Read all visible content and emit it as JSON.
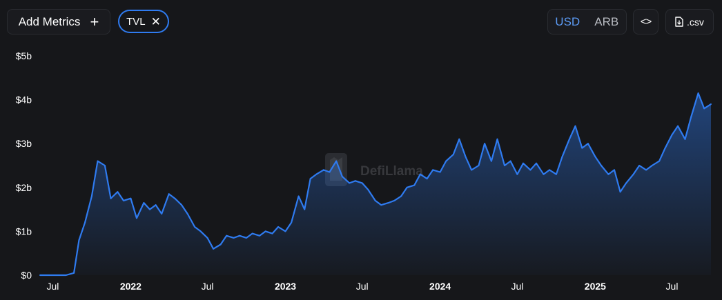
{
  "toolbar": {
    "add_metrics_label": "Add Metrics",
    "add_metrics_icon": "plus-icon",
    "metric_chip_label": "TVL",
    "metric_chip_icon": "close-icon",
    "currency_options": [
      "USD",
      "ARB"
    ],
    "currency_selected": "USD",
    "embed_icon": "code-icon",
    "csv_label": ".csv",
    "csv_icon": "file-download-icon"
  },
  "watermark": {
    "text": "DefiLlama",
    "icon": "llama-logo-icon"
  },
  "colors": {
    "background": "#16171a",
    "line": "#2f7bf0",
    "accent": "#5c9bf5"
  },
  "chart_data": {
    "type": "area",
    "title": "",
    "xlabel": "",
    "ylabel": "",
    "ylim": [
      0,
      5
    ],
    "y_unit": "billion USD",
    "y_tick_labels": [
      "$0",
      "$1b",
      "$2b",
      "$3b",
      "$4b",
      "$5b"
    ],
    "x_tick_labels": [
      {
        "label": "Jul",
        "date": "2021-07",
        "bold": false
      },
      {
        "label": "2022",
        "date": "2022-01",
        "bold": true
      },
      {
        "label": "Jul",
        "date": "2022-07",
        "bold": false
      },
      {
        "label": "2023",
        "date": "2023-01",
        "bold": true
      },
      {
        "label": "Jul",
        "date": "2023-07",
        "bold": false
      },
      {
        "label": "2024",
        "date": "2024-01",
        "bold": true
      },
      {
        "label": "Jul",
        "date": "2024-07",
        "bold": false
      },
      {
        "label": "2025",
        "date": "2025-01",
        "bold": true
      },
      {
        "label": "Jul",
        "date": "2025-07",
        "bold": false
      }
    ],
    "grid": false,
    "legend": "none",
    "series": [
      {
        "name": "TVL",
        "x": [
          "2021-06",
          "2021-07",
          "2021-08",
          "2021-08-20",
          "2021-09",
          "2021-09-15",
          "2021-10",
          "2021-10-15",
          "2021-11",
          "2021-11-15",
          "2021-12",
          "2021-12-15",
          "2022-01",
          "2022-01-15",
          "2022-02",
          "2022-02-15",
          "2022-03",
          "2022-03-15",
          "2022-04",
          "2022-04-15",
          "2022-05",
          "2022-05-15",
          "2022-06",
          "2022-06-15",
          "2022-07",
          "2022-07-15",
          "2022-08",
          "2022-08-15",
          "2022-09",
          "2022-09-15",
          "2022-10",
          "2022-10-15",
          "2022-11",
          "2022-11-15",
          "2022-12",
          "2022-12-15",
          "2023-01",
          "2023-01-15",
          "2023-02",
          "2023-02-15",
          "2023-03",
          "2023-03-15",
          "2023-04",
          "2023-04-15",
          "2023-05",
          "2023-05-15",
          "2023-06",
          "2023-06-15",
          "2023-07",
          "2023-07-15",
          "2023-08",
          "2023-08-15",
          "2023-09",
          "2023-09-15",
          "2023-10",
          "2023-10-15",
          "2023-11",
          "2023-11-15",
          "2023-12",
          "2023-12-15",
          "2024-01",
          "2024-01-15",
          "2024-02",
          "2024-02-15",
          "2024-03",
          "2024-03-15",
          "2024-04",
          "2024-04-15",
          "2024-05",
          "2024-05-15",
          "2024-06",
          "2024-06-15",
          "2024-07",
          "2024-07-15",
          "2024-08",
          "2024-08-15",
          "2024-09",
          "2024-09-15",
          "2024-10",
          "2024-10-15",
          "2024-11",
          "2024-11-15",
          "2024-12",
          "2024-12-15",
          "2025-01",
          "2025-01-15",
          "2025-02",
          "2025-02-15",
          "2025-03",
          "2025-03-15",
          "2025-04",
          "2025-04-15",
          "2025-05",
          "2025-05-15",
          "2025-06",
          "2025-06-15",
          "2025-07",
          "2025-07-15",
          "2025-08",
          "2025-08-15",
          "2025-09",
          "2025-09-15",
          "2025-10"
        ],
        "values": [
          0,
          0,
          0,
          0.05,
          0.8,
          1.2,
          1.8,
          2.6,
          2.5,
          1.75,
          1.9,
          1.7,
          1.75,
          1.3,
          1.65,
          1.5,
          1.6,
          1.4,
          1.85,
          1.75,
          1.6,
          1.4,
          1.1,
          1.0,
          0.85,
          0.6,
          0.7,
          0.9,
          0.85,
          0.9,
          0.85,
          0.95,
          0.9,
          1.0,
          0.95,
          1.1,
          1.0,
          1.2,
          1.8,
          1.5,
          2.2,
          2.3,
          2.4,
          2.35,
          2.6,
          2.25,
          2.1,
          2.15,
          2.1,
          1.95,
          1.7,
          1.6,
          1.65,
          1.7,
          1.8,
          2.0,
          2.05,
          2.3,
          2.2,
          2.4,
          2.35,
          2.6,
          2.75,
          3.1,
          2.7,
          2.4,
          2.5,
          3.0,
          2.6,
          3.1,
          2.5,
          2.6,
          2.3,
          2.55,
          2.4,
          2.55,
          2.3,
          2.4,
          2.3,
          2.7,
          3.1,
          3.4,
          2.9,
          3.0,
          2.7,
          2.5,
          2.3,
          2.4,
          1.9,
          2.1,
          2.3,
          2.5,
          2.4,
          2.5,
          2.6,
          2.9,
          3.2,
          3.4,
          3.1,
          3.6,
          4.15,
          3.8,
          3.9
        ]
      }
    ]
  }
}
